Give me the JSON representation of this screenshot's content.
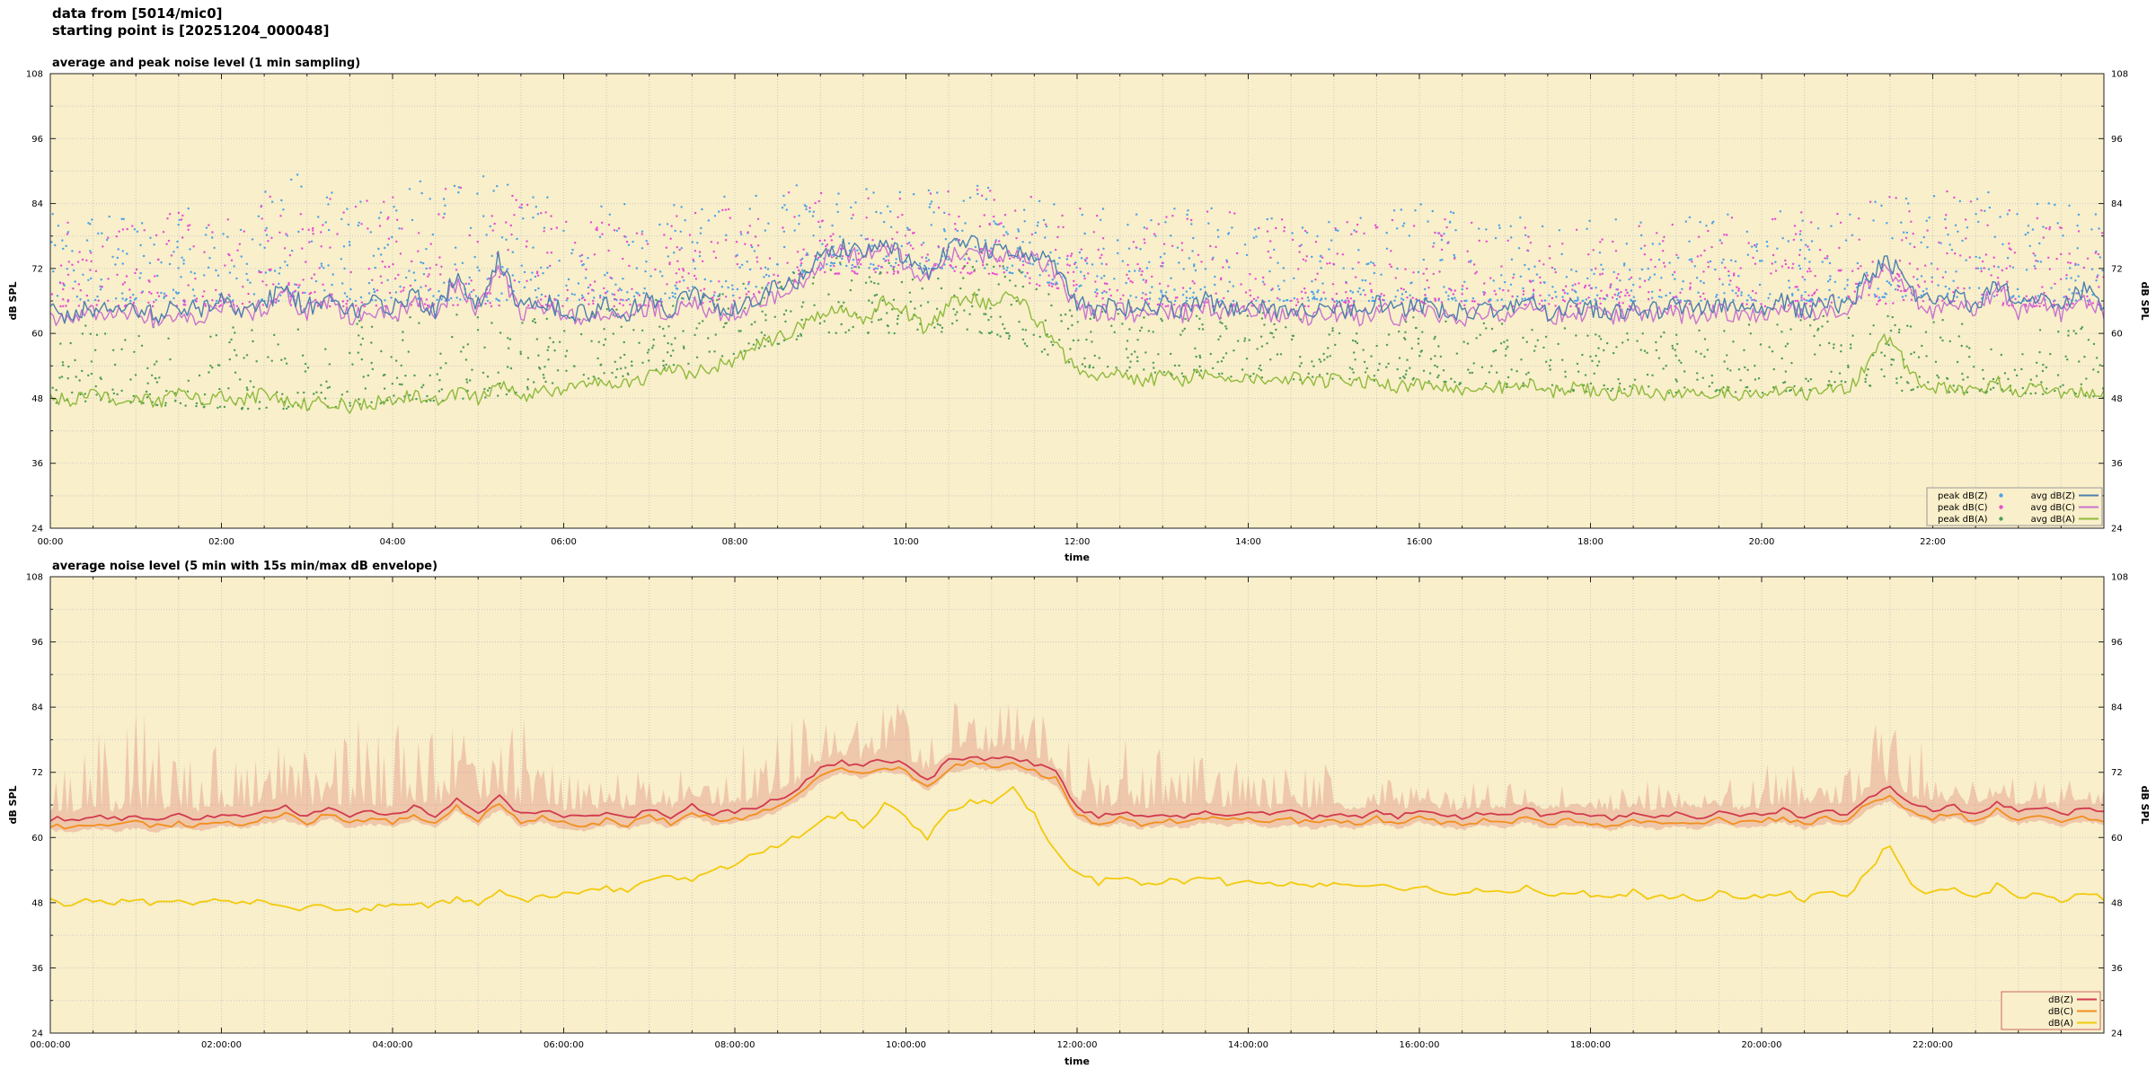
{
  "header": {
    "line1": "data from [5014/mic0]",
    "line2": "starting point is [20251204_000048]"
  },
  "render": {
    "seed": 20251204,
    "colors": {
      "plot_bg": "#f9efca",
      "grid": "#c9c9c9",
      "axis": "#222222"
    }
  },
  "chart_data": [
    {
      "type": "line+scatter",
      "title": "average and peak noise level (1 min sampling)",
      "xlabel": "time",
      "ylabel": "dB SPL",
      "ylabel_right": "dB SPL",
      "ylim": [
        24,
        108
      ],
      "yticks": [
        24,
        36,
        48,
        60,
        72,
        84,
        96,
        108
      ],
      "y_minor_step": 6,
      "x_range_minutes": [
        0,
        1440
      ],
      "xtick_step_minutes": 120,
      "x_minor_step_minutes": 30,
      "anchor_step_minutes": 15,
      "xticks": [
        {
          "t": 0,
          "label": "00:00"
        },
        {
          "t": 120,
          "label": "02:00"
        },
        {
          "t": 240,
          "label": "04:00"
        },
        {
          "t": 360,
          "label": "06:00"
        },
        {
          "t": 480,
          "label": "08:00"
        },
        {
          "t": 600,
          "label": "10:00"
        },
        {
          "t": 720,
          "label": "12:00"
        },
        {
          "t": 840,
          "label": "14:00"
        },
        {
          "t": 960,
          "label": "16:00"
        },
        {
          "t": 1080,
          "label": "18:00"
        },
        {
          "t": 1200,
          "label": "20:00"
        },
        {
          "t": 1320,
          "label": "22:00"
        }
      ],
      "series": [
        {
          "name": "avg dB(Z)",
          "kind": "line",
          "color": "#4d7fae",
          "jitter": 1.8,
          "values": [
            64,
            63.4,
            64.6,
            63.8,
            64.9,
            63.5,
            65.2,
            64,
            66.5,
            64.2,
            65.8,
            68,
            64.6,
            67.2,
            64,
            65.5,
            64.3,
            66.8,
            64.1,
            70.5,
            65,
            74,
            64.5,
            66,
            64.2,
            63.6,
            65.4,
            63.9,
            66.2,
            64.4,
            67.5,
            64.8,
            65,
            66.5,
            68.5,
            70,
            74.5,
            76,
            75,
            77,
            74,
            71.5,
            75.5,
            76.5,
            75,
            76,
            74.5,
            72,
            66,
            64.5,
            65.2,
            64,
            65.5,
            64.2,
            66,
            64.6,
            65.8,
            64.3,
            65,
            64,
            64.8,
            63.9,
            65.3,
            64.1,
            65.6,
            64.4,
            63.8,
            65,
            64.2,
            66.5,
            64,
            65.2,
            64.5,
            63.8,
            65,
            64.2,
            64.8,
            64,
            65.5,
            64.3,
            64.6,
            65.8,
            64.1,
            66,
            65,
            70.5,
            73.5,
            68,
            65.5,
            67,
            64.8,
            69.5,
            65.2,
            66.5,
            64.6,
            68,
            65
          ]
        },
        {
          "name": "avg dB(C)",
          "kind": "line",
          "color": "#c873cf",
          "jitter": 1.8,
          "values": [
            63,
            62.4,
            63.6,
            62.8,
            63.9,
            62.5,
            64.2,
            63,
            65.5,
            63.2,
            64.8,
            67,
            63.6,
            66.2,
            63,
            64.5,
            63.3,
            65.8,
            63.1,
            69.5,
            64,
            72.5,
            63.5,
            65,
            63.2,
            62.6,
            64.4,
            62.9,
            65.2,
            63.4,
            66.5,
            63.8,
            64,
            65.5,
            67.5,
            69,
            73.5,
            75,
            74,
            76,
            73,
            70.5,
            74.5,
            75.5,
            74,
            75,
            73.5,
            71,
            65,
            63.5,
            64.2,
            63,
            64.5,
            63.2,
            65,
            63.6,
            64.8,
            63.3,
            64,
            63,
            63.8,
            62.9,
            64.3,
            63.1,
            64.6,
            63.4,
            62.8,
            64,
            63.2,
            65.5,
            63,
            64.2,
            63.5,
            62.8,
            64,
            63.2,
            63.8,
            63,
            64.5,
            63.3,
            63.6,
            64.8,
            63.1,
            65,
            64,
            69.5,
            72,
            67,
            64.5,
            66,
            63.8,
            68.5,
            64.2,
            65.5,
            63.6,
            67,
            64
          ]
        },
        {
          "name": "avg dB(A)",
          "kind": "line",
          "color": "#8fba3c",
          "jitter": 1.3,
          "values": [
            48,
            47.5,
            48.5,
            47.8,
            48.2,
            47.4,
            48.6,
            47.9,
            48.3,
            47.6,
            48.8,
            47.2,
            46.8,
            47.5,
            46.5,
            47,
            47.8,
            48.4,
            47.3,
            49,
            48,
            50.5,
            48.5,
            49.2,
            49.5,
            50.2,
            51,
            50.4,
            52,
            53.5,
            52.5,
            54,
            55,
            57.5,
            59,
            61,
            63.5,
            65,
            62,
            66.5,
            64,
            60.5,
            65.5,
            67,
            65,
            68,
            63,
            58,
            53,
            51.5,
            52.5,
            51,
            52,
            51.2,
            52.8,
            51.5,
            52.2,
            51,
            51.8,
            50.5,
            51.5,
            50.8,
            51.2,
            50.2,
            50.8,
            50,
            49.5,
            50.5,
            49.8,
            51,
            49.2,
            50,
            49.5,
            48.8,
            49.8,
            48.5,
            49.2,
            48.6,
            49.6,
            48.4,
            49,
            50,
            48.6,
            49.8,
            49.2,
            55,
            60,
            52,
            49.5,
            50.5,
            48.8,
            51,
            49,
            50,
            48.5,
            49.5,
            48.8
          ]
        },
        {
          "name": "peak dB(Z)",
          "kind": "scatter",
          "color": "#4da3e8",
          "per_hour": 55,
          "bias": 2.0,
          "low_hourly": [
            66,
            66,
            66,
            66,
            66,
            66,
            66,
            66,
            67,
            72,
            72,
            72,
            68,
            66,
            66,
            66,
            66,
            66,
            66,
            66,
            66,
            66,
            67,
            66,
            66
          ],
          "high_hourly": [
            84,
            83,
            86,
            90,
            88,
            90,
            85,
            84,
            86,
            89,
            87,
            88,
            85,
            83,
            84,
            82,
            84,
            82,
            81,
            82,
            83,
            87,
            89,
            85,
            83
          ]
        },
        {
          "name": "peak dB(C)",
          "kind": "scatter",
          "color": "#e64fd2",
          "per_hour": 55,
          "bias": 2.0,
          "low_hourly": [
            65,
            65,
            65,
            65,
            65,
            65,
            65,
            65,
            66,
            71,
            71,
            71,
            67,
            65,
            65,
            65,
            65,
            65,
            65,
            65,
            65,
            65,
            66,
            65,
            65
          ],
          "high_hourly": [
            82,
            81,
            84,
            87,
            86,
            88,
            83,
            82,
            85,
            88,
            86,
            87,
            84,
            82,
            83,
            81,
            82,
            80,
            80,
            81,
            82,
            85,
            87,
            83,
            81
          ]
        },
        {
          "name": "peak dB(A)",
          "kind": "scatter",
          "color": "#4f9e55",
          "per_hour": 50,
          "bias": 1.6,
          "low_hourly": [
            47,
            47,
            46,
            46,
            47,
            48,
            50,
            53,
            56,
            60,
            60,
            60,
            54,
            52,
            52,
            51,
            51,
            50,
            49,
            49,
            49,
            50,
            49,
            49,
            48
          ],
          "high_hourly": [
            62,
            61,
            62,
            63,
            63,
            64,
            63,
            66,
            70,
            75,
            74,
            75,
            68,
            64,
            64,
            63,
            63,
            62,
            61,
            61,
            62,
            64,
            63,
            62,
            61
          ]
        }
      ],
      "legend": {
        "columns": [
          [
            "peak dB(Z)",
            "peak dB(C)",
            "peak dB(A)"
          ],
          [
            "avg dB(Z)",
            "avg dB(C)",
            "avg dB(A)"
          ]
        ],
        "border_color": "#999999"
      }
    },
    {
      "type": "line+band",
      "title": "average noise level (5 min with 15s min/max dB envelope)",
      "xlabel": "time",
      "ylabel": "dB SPL",
      "ylabel_right": "dB SPL",
      "ylim": [
        24,
        108
      ],
      "yticks": [
        24,
        36,
        48,
        60,
        72,
        84,
        96,
        108
      ],
      "y_minor_step": 6,
      "x_range_minutes": [
        0,
        1440
      ],
      "xtick_step_minutes": 120,
      "x_minor_step_minutes": 30,
      "anchor_step_minutes": 15,
      "xticks": [
        {
          "t": 0,
          "label": "00:00:00"
        },
        {
          "t": 120,
          "label": "02:00:00"
        },
        {
          "t": 240,
          "label": "04:00:00"
        },
        {
          "t": 360,
          "label": "06:00:00"
        },
        {
          "t": 480,
          "label": "08:00:00"
        },
        {
          "t": 600,
          "label": "10:00:00"
        },
        {
          "t": 720,
          "label": "12:00:00"
        },
        {
          "t": 840,
          "label": "14:00:00"
        },
        {
          "t": 960,
          "label": "16:00:00"
        },
        {
          "t": 1080,
          "label": "18:00:00"
        },
        {
          "t": 1200,
          "label": "20:00:00"
        },
        {
          "t": 1320,
          "label": "22:00:00"
        }
      ],
      "series": [
        {
          "name": "dB(Z)",
          "kind": "line",
          "color": "#d23a4e",
          "jitter": 0.5,
          "values": [
            63.5,
            63.2,
            63.8,
            63.4,
            63.9,
            63.3,
            64,
            63.5,
            64.5,
            63.8,
            64.8,
            65.5,
            64,
            65.8,
            63.9,
            64.6,
            64.2,
            65.5,
            64,
            67,
            64.5,
            67.5,
            64.2,
            65,
            63.8,
            63.5,
            64.5,
            63.7,
            65,
            64,
            66,
            64.5,
            64.8,
            65.5,
            67,
            69,
            72.5,
            74,
            73,
            74.5,
            73.5,
            70.5,
            74,
            75,
            74.5,
            74.8,
            73.5,
            72,
            65.5,
            64,
            64.8,
            63.8,
            64.5,
            63.9,
            65,
            64.2,
            65,
            64,
            64.6,
            63.8,
            64.4,
            63.7,
            64.8,
            63.9,
            65,
            64.2,
            63.6,
            64.5,
            63.9,
            65.2,
            63.8,
            64.6,
            64,
            63.5,
            64.4,
            63.8,
            64.2,
            63.7,
            64.8,
            63.9,
            64.3,
            65,
            63.8,
            64.9,
            64.4,
            67.5,
            69,
            66,
            64.8,
            65.8,
            64.2,
            66.5,
            64.6,
            65.5,
            64,
            65.2,
            64.5
          ]
        },
        {
          "name": "dB(C)",
          "kind": "line",
          "color": "#f28f1c",
          "jitter": 0.5,
          "values": [
            62.2,
            61.9,
            62.5,
            62.1,
            62.6,
            62,
            62.7,
            62.2,
            63.2,
            62.5,
            63.5,
            64.2,
            62.7,
            64.5,
            62.6,
            63.3,
            62.9,
            64.2,
            62.7,
            65.7,
            63.2,
            66.2,
            62.9,
            63.7,
            62.5,
            62.2,
            63.2,
            62.4,
            63.7,
            62.7,
            64.7,
            63.2,
            63.5,
            64.2,
            65.7,
            67.7,
            71.2,
            72.7,
            71.7,
            73.2,
            72.2,
            69.2,
            72.7,
            73.7,
            73.2,
            73.5,
            72.2,
            70.7,
            64.2,
            62.7,
            63.5,
            62.5,
            63.2,
            62.6,
            63.7,
            62.9,
            63.7,
            62.7,
            63.3,
            62.5,
            63.1,
            62.4,
            63.5,
            62.6,
            63.7,
            62.9,
            62.3,
            63.2,
            62.6,
            63.9,
            62.5,
            63.3,
            62.7,
            62.2,
            63.1,
            62.5,
            62.9,
            62.4,
            63.5,
            62.6,
            63,
            63.7,
            62.5,
            63.6,
            63.1,
            66.2,
            67.7,
            64.7,
            63.5,
            64.5,
            62.9,
            65.2,
            63.3,
            64.2,
            62.7,
            63.9,
            63.2
          ]
        },
        {
          "name": "dB(A)",
          "kind": "line",
          "color": "#f2ca0c",
          "jitter": 0.6,
          "values": [
            48.2,
            47.8,
            48.4,
            47.9,
            48.3,
            47.7,
            48.5,
            48,
            48.2,
            47.7,
            48.6,
            47.4,
            46.9,
            47.3,
            46.6,
            47.1,
            47.6,
            48.2,
            47.4,
            48.8,
            48,
            50,
            48.4,
            49,
            49.4,
            50,
            50.8,
            50.3,
            51.8,
            53,
            52.4,
            53.8,
            54.8,
            57,
            58.5,
            60.5,
            62.8,
            64.5,
            61.8,
            66,
            63.5,
            60,
            65,
            66.5,
            66.5,
            69.5,
            64,
            57.5,
            53.2,
            51.8,
            52.6,
            51.2,
            52.2,
            51.4,
            52.9,
            51.7,
            52.3,
            51.2,
            51.9,
            50.7,
            51.6,
            50.9,
            51.3,
            50.4,
            50.9,
            50.2,
            49.7,
            50.6,
            49.9,
            51.1,
            49.4,
            50.1,
            49.6,
            48.9,
            49.9,
            48.7,
            49.3,
            48.7,
            49.7,
            48.5,
            49.1,
            50.1,
            48.7,
            49.9,
            49.3,
            54,
            59,
            51.5,
            49.6,
            50.6,
            48.9,
            51.1,
            49.1,
            50.1,
            48.6,
            49.6,
            48.9
          ]
        }
      ],
      "envelope": {
        "color": "#e0857a",
        "opacity": 0.38,
        "min_offset": -2.2,
        "spike_bias": 1.7,
        "max_values": [
          80,
          74,
          84,
          76,
          86,
          78,
          82,
          75,
          84,
          77,
          86,
          80,
          83,
          76,
          85,
          78,
          84,
          77,
          86,
          80,
          85,
          78,
          83,
          76,
          73,
          70,
          74,
          71,
          74,
          72,
          75,
          72,
          78,
          80,
          82,
          83,
          84,
          86,
          84,
          85,
          86,
          83,
          85,
          86,
          84,
          85,
          83,
          82,
          78,
          75,
          79,
          76,
          78,
          74,
          79,
          75,
          76,
          73,
          77,
          74,
          76,
          72,
          76,
          73,
          72,
          70,
          73,
          70,
          72,
          69,
          73,
          70,
          71,
          69,
          72,
          70,
          71,
          69,
          72,
          70,
          73,
          75,
          72,
          76,
          78,
          81,
          82,
          79,
          76,
          73,
          74,
          72,
          73,
          71,
          72,
          70,
          71
        ]
      },
      "legend": {
        "columns": [
          [
            "dB(Z)",
            "dB(C)",
            "dB(A)"
          ]
        ],
        "border_color": "#cc6666"
      }
    }
  ]
}
